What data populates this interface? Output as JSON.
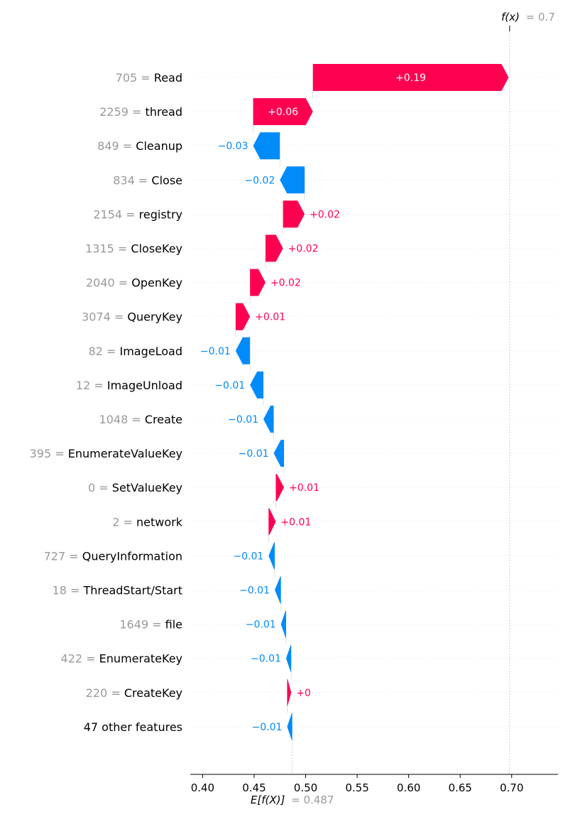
{
  "chart_data": {
    "type": "waterfall",
    "fx_label": "f(x)",
    "fx_value_text": "= 0.7",
    "fx_value": 0.698,
    "base_label": "E[f(X)]",
    "base_value_text": "= 0.487",
    "base_value": 0.487,
    "xlim": [
      0.388,
      0.745
    ],
    "x_ticks": [
      0.4,
      0.45,
      0.5,
      0.55,
      0.6,
      0.65,
      0.7
    ],
    "x_tick_labels": [
      "0.40",
      "0.45",
      "0.50",
      "0.55",
      "0.60",
      "0.65",
      "0.70"
    ],
    "colors": {
      "positive": "#ff0051",
      "negative": "#008bfb"
    },
    "features": [
      {
        "value": "705",
        "name": "Read",
        "shap": 0.19,
        "label": "+0.19"
      },
      {
        "value": "2259",
        "name": "thread",
        "shap": 0.058,
        "label": "+0.06"
      },
      {
        "value": "849",
        "name": "Cleanup",
        "shap": -0.026,
        "label": "−0.03"
      },
      {
        "value": "834",
        "name": "Close",
        "shap": -0.024,
        "label": "−0.02"
      },
      {
        "value": "2154",
        "name": "registry",
        "shap": 0.021,
        "label": "+0.02"
      },
      {
        "value": "1315",
        "name": "CloseKey",
        "shap": 0.017,
        "label": "+0.02"
      },
      {
        "value": "2040",
        "name": "OpenKey",
        "shap": 0.015,
        "label": "+0.02"
      },
      {
        "value": "3074",
        "name": "QueryKey",
        "shap": 0.014,
        "label": "+0.01"
      },
      {
        "value": "82",
        "name": "ImageLoad",
        "shap": -0.014,
        "label": "−0.01"
      },
      {
        "value": "12",
        "name": "ImageUnload",
        "shap": -0.013,
        "label": "−0.01"
      },
      {
        "value": "1048",
        "name": "Create",
        "shap": -0.01,
        "label": "−0.01"
      },
      {
        "value": "395",
        "name": "EnumerateValueKey",
        "shap": -0.01,
        "label": "−0.01"
      },
      {
        "value": "0",
        "name": "SetValueKey",
        "shap": 0.008,
        "label": "+0.01"
      },
      {
        "value": "2",
        "name": "network",
        "shap": 0.007,
        "label": "+0.01"
      },
      {
        "value": "727",
        "name": "QueryInformation",
        "shap": -0.006,
        "label": "−0.01"
      },
      {
        "value": "18",
        "name": "ThreadStart/Start",
        "shap": -0.006,
        "label": "−0.01"
      },
      {
        "value": "1649",
        "name": "file",
        "shap": -0.005,
        "label": "−0.01"
      },
      {
        "value": "422",
        "name": "EnumerateKey",
        "shap": -0.005,
        "label": "−0.01"
      },
      {
        "value": "220",
        "name": "CreateKey",
        "shap": 0.004,
        "label": "+0"
      },
      {
        "value": "",
        "name": "47 other features",
        "shap": -0.005,
        "label": "−0.01"
      }
    ]
  }
}
